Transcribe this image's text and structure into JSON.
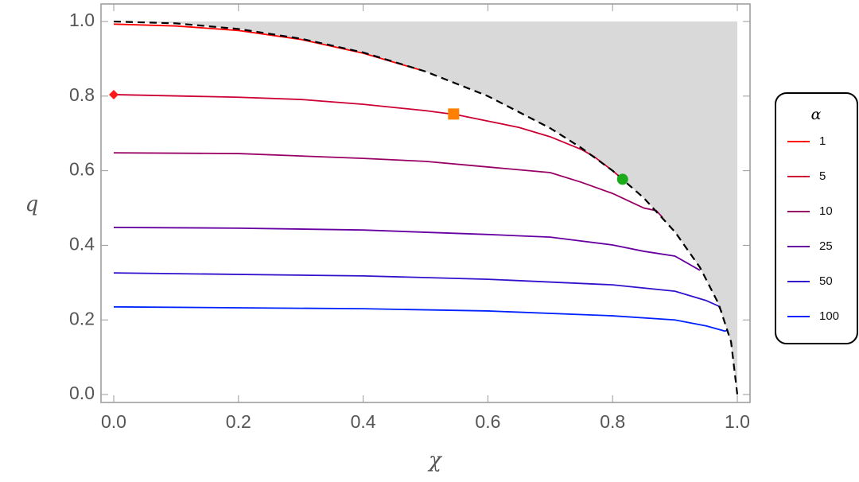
{
  "chart_data": {
    "type": "line",
    "x_label": "χ",
    "y_label": "q",
    "legend_title": "α",
    "legend_position": "right",
    "xlim": [
      -0.0204,
      1.0204
    ],
    "ylim": [
      -0.0213,
      1.047
    ],
    "xticks": [
      {
        "value": 0,
        "label": "0.0"
      },
      0.2,
      0.4,
      0.6,
      0.8,
      {
        "value": 1,
        "label": "1.0"
      }
    ],
    "yticks": [
      {
        "value": 0,
        "label": "0.0"
      },
      0.2,
      0.4,
      0.6,
      0.8,
      {
        "value": 1,
        "label": "1.0"
      }
    ],
    "shade_color": "#d9d9d9",
    "boundary": {
      "color": "#000000",
      "dashed": true,
      "x": [
        0,
        0.1,
        0.2,
        0.3,
        0.4,
        0.5,
        0.6,
        0.7,
        0.75,
        0.8,
        0.85,
        0.9,
        0.94,
        0.97,
        0.99,
        1
      ],
      "values": [
        1,
        0.995,
        0.98,
        0.954,
        0.917,
        0.866,
        0.8,
        0.714,
        0.661,
        0.6,
        0.527,
        0.436,
        0.341,
        0.243,
        0.141,
        0
      ]
    },
    "series": [
      {
        "name": "1",
        "color": "#ff0000",
        "x": [
          0,
          0.1,
          0.2,
          0.3,
          0.4,
          0.5
        ],
        "values": [
          0.993,
          0.988,
          0.976,
          0.952,
          0.915,
          0.866
        ]
      },
      {
        "name": "5",
        "color": "#cc0033",
        "x": [
          0,
          0.2,
          0.3,
          0.4,
          0.5,
          0.55,
          0.6,
          0.65,
          0.7,
          0.75,
          0.77,
          0.8,
          0.816
        ],
        "values": [
          0.804,
          0.797,
          0.791,
          0.778,
          0.761,
          0.75,
          0.733,
          0.716,
          0.691,
          0.657,
          0.638,
          0.6,
          0.577
        ]
      },
      {
        "name": "10",
        "color": "#990066",
        "x": [
          0,
          0.2,
          0.4,
          0.5,
          0.6,
          0.7,
          0.75,
          0.8,
          0.85,
          0.87,
          0.88
        ],
        "values": [
          0.648,
          0.646,
          0.633,
          0.625,
          0.61,
          0.595,
          0.569,
          0.539,
          0.5,
          0.493,
          0.475
        ]
      },
      {
        "name": "25",
        "color": "#6600a0",
        "x": [
          0,
          0.2,
          0.4,
          0.6,
          0.7,
          0.8,
          0.85,
          0.9,
          0.94
        ],
        "values": [
          0.448,
          0.446,
          0.441,
          0.429,
          0.422,
          0.401,
          0.384,
          0.371,
          0.333
        ]
      },
      {
        "name": "50",
        "color": "#3311cc",
        "x": [
          0,
          0.4,
          0.6,
          0.8,
          0.9,
          0.95,
          0.97,
          0.975
        ],
        "values": [
          0.326,
          0.318,
          0.309,
          0.294,
          0.277,
          0.252,
          0.237,
          0.222
        ]
      },
      {
        "name": "100",
        "color": "#0022ff",
        "x": [
          0,
          0.4,
          0.6,
          0.8,
          0.9,
          0.95,
          0.98,
          0.985
        ],
        "values": [
          0.235,
          0.23,
          0.224,
          0.211,
          0.2,
          0.184,
          0.17,
          0.173
        ]
      }
    ],
    "markers": [
      {
        "x": 0,
        "y": 0.804,
        "color": "#ff1a1a",
        "shape": "diamond"
      },
      {
        "x": 0.545,
        "y": 0.752,
        "color": "#ff8000",
        "shape": "square"
      },
      {
        "x": 0.816,
        "y": 0.577,
        "color": "#1aaa1a",
        "shape": "circle"
      }
    ]
  }
}
